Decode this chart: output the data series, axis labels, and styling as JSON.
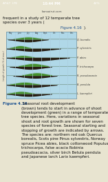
{
  "header_text": "frequent in a study of 12 temperate tree\nspecies over 3 years (",
  "header_link": "Figure 4.16",
  "header_end": ").",
  "fig_label": "Figure 4.16",
  "caption_normal": " Seasonal root development\n(brown) tends to start in advance of shoot\ndevelopment (green) in a range of temperate\ntree species. Here, variations in seasonal\nshoot and root growth are shown for seven\nspecies of forest tree. Seasonal starting and\nstopping of growth are indicated by arrows.\nThe species are: northern red oak Quercus\nborealis, Scots pine Pinus sylvestris, Norway\nspruce Picea abies, black cottonwood Populus\ntrichocarpa, false acacia Robinia\npseudoacacia, silver birch Betula pendula\nand Japanese larch Larix kaempferi.",
  "species": [
    "Q. borealis",
    "P. sylvestris",
    "P. abies",
    "P. trichocarpa",
    "R. pseudoacacia",
    "B. pendula",
    "L. kaempferi"
  ],
  "months": [
    "May",
    "June",
    "July",
    "August",
    "September",
    "October",
    "November",
    "December"
  ],
  "chart_bg": "#b0d8e8",
  "green_color": "#3a8a1a",
  "brown_color": "#1a0d00",
  "fig_label_color": "#1a5090",
  "link_color": "#1a5090",
  "page_bg": "#e8e4d0",
  "species_data": [
    {
      "root": [
        0.2,
        1.4,
        4.8
      ],
      "shoot": [
        0.8,
        2.0,
        4.2
      ],
      "root_amp": 0.3,
      "shoot_amp": 0.24
    },
    {
      "root": [
        0.0,
        2.2,
        6.2
      ],
      "shoot": [
        0.4,
        1.4,
        2.8
      ],
      "root_amp": 0.34,
      "shoot_amp": 0.28
    },
    {
      "root": [
        0.0,
        2.8,
        7.2
      ],
      "shoot": [
        0.6,
        1.6,
        3.2
      ],
      "root_amp": 0.38,
      "shoot_amp": 0.2
    },
    {
      "root": [
        0.4,
        2.0,
        5.2
      ],
      "shoot": [
        1.4,
        3.0,
        4.8
      ],
      "root_amp": 0.32,
      "shoot_amp": 0.32
    },
    {
      "root": [
        0.8,
        3.2,
        5.8
      ],
      "shoot": [
        1.8,
        3.4,
        5.2
      ],
      "root_amp": 0.3,
      "shoot_amp": 0.3
    },
    {
      "root": [
        0.0,
        1.4,
        5.8
      ],
      "shoot": [
        0.4,
        1.8,
        3.8
      ],
      "root_amp": 0.32,
      "shoot_amp": 0.26
    },
    {
      "root": [
        0.0,
        0.9,
        5.2
      ],
      "shoot": [
        0.2,
        1.4,
        3.2
      ],
      "root_amp": 0.3,
      "shoot_amp": 0.24
    }
  ],
  "status_bar_color": "#2a2a2a",
  "url_text": "bonsairut.com"
}
